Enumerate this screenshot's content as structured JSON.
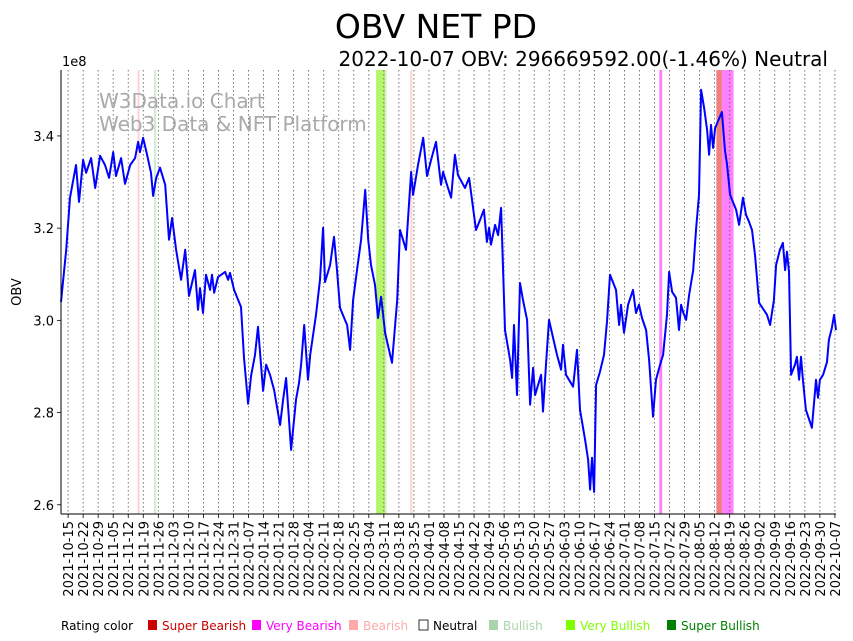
{
  "chart_data": {
    "type": "line",
    "title": "OBV NET PD",
    "subtitle": "2022-10-07 OBV: 296669592.00(-1.46%) Neutral",
    "ylabel": "OBV",
    "y_multiplier_label": "1e8",
    "watermark": [
      "W3Data.io Chart",
      "Web3 Data & NFT Platform"
    ],
    "x_unit": "days since 2021-10-15",
    "xlim": [
      -3.3,
      357.5
    ],
    "ylim": [
      2.58,
      3.543
    ],
    "y_ticks": [
      2.6,
      2.8,
      3.0,
      3.2,
      3.4
    ],
    "y_tick_labels": [
      "2.6",
      "2.8",
      "3.0",
      "3.2",
      "3.4"
    ],
    "grid": "vertical dotted at x ticks",
    "x_tick_labels": [
      "2021-10-15",
      "2021-10-22",
      "2021-10-29",
      "2021-11-05",
      "2021-11-12",
      "2021-11-19",
      "2021-11-26",
      "2021-12-03",
      "2021-12-10",
      "2021-12-17",
      "2021-12-24",
      "2021-12-31",
      "2022-01-07",
      "2022-01-14",
      "2022-01-21",
      "2022-01-28",
      "2022-02-04",
      "2022-02-11",
      "2022-02-18",
      "2022-02-25",
      "2022-03-04",
      "2022-03-11",
      "2022-03-18",
      "2022-03-25",
      "2022-04-01",
      "2022-04-08",
      "2022-04-15",
      "2022-04-22",
      "2022-04-29",
      "2022-05-06",
      "2022-05-13",
      "2022-05-20",
      "2022-05-27",
      "2022-06-03",
      "2022-06-10",
      "2022-06-17",
      "2022-06-24",
      "2022-07-01",
      "2022-07-08",
      "2022-07-15",
      "2022-07-22",
      "2022-07-29",
      "2022-08-05",
      "2022-08-12",
      "2022-08-19",
      "2022-08-26",
      "2022-09-02",
      "2022-09-09",
      "2022-09-16",
      "2022-09-23",
      "2022-09-30",
      "2022-10-07"
    ],
    "series": [
      {
        "name": "OBV",
        "color": "#0000ff",
        "points": [
          [
            -3.3,
            3.04
          ],
          [
            -0.9,
            3.153
          ],
          [
            0.9,
            3.266
          ],
          [
            3.7,
            3.337
          ],
          [
            5.1,
            3.257
          ],
          [
            7.0,
            3.348
          ],
          [
            8.4,
            3.32
          ],
          [
            10.7,
            3.352
          ],
          [
            12.6,
            3.287
          ],
          [
            14.9,
            3.357
          ],
          [
            17.2,
            3.337
          ],
          [
            19.1,
            3.309
          ],
          [
            21.0,
            3.365
          ],
          [
            22.3,
            3.313
          ],
          [
            24.7,
            3.352
          ],
          [
            26.5,
            3.296
          ],
          [
            28.9,
            3.337
          ],
          [
            31.2,
            3.352
          ],
          [
            32.6,
            3.387
          ],
          [
            33.5,
            3.365
          ],
          [
            34.9,
            3.396
          ],
          [
            36.8,
            3.359
          ],
          [
            38.6,
            3.32
          ],
          [
            39.6,
            3.27
          ],
          [
            41.0,
            3.309
          ],
          [
            42.8,
            3.331
          ],
          [
            45.2,
            3.294
          ],
          [
            47.0,
            3.175
          ],
          [
            48.4,
            3.222
          ],
          [
            50.3,
            3.153
          ],
          [
            52.6,
            3.088
          ],
          [
            54.5,
            3.153
          ],
          [
            56.3,
            3.053
          ],
          [
            59.1,
            3.109
          ],
          [
            60.5,
            3.023
          ],
          [
            61.4,
            3.07
          ],
          [
            62.8,
            3.016
          ],
          [
            64.2,
            3.099
          ],
          [
            66.1,
            3.066
          ],
          [
            67.0,
            3.099
          ],
          [
            68.0,
            3.06
          ],
          [
            69.8,
            3.094
          ],
          [
            73.1,
            3.105
          ],
          [
            74.5,
            3.088
          ],
          [
            75.4,
            3.103
          ],
          [
            77.3,
            3.066
          ],
          [
            80.5,
            3.029
          ],
          [
            81.9,
            2.919
          ],
          [
            83.8,
            2.819
          ],
          [
            85.2,
            2.88
          ],
          [
            87.0,
            2.925
          ],
          [
            88.4,
            2.986
          ],
          [
            90.8,
            2.847
          ],
          [
            92.2,
            2.904
          ],
          [
            94.0,
            2.882
          ],
          [
            95.9,
            2.849
          ],
          [
            98.7,
            2.773
          ],
          [
            100.1,
            2.828
          ],
          [
            101.5,
            2.875
          ],
          [
            103.8,
            2.719
          ],
          [
            106.1,
            2.828
          ],
          [
            107.5,
            2.864
          ],
          [
            108.5,
            2.904
          ],
          [
            109.9,
            2.99
          ],
          [
            111.7,
            2.871
          ],
          [
            112.7,
            2.925
          ],
          [
            115.4,
            3.012
          ],
          [
            117.3,
            3.088
          ],
          [
            118.7,
            3.201
          ],
          [
            119.6,
            3.083
          ],
          [
            122.0,
            3.12
          ],
          [
            123.8,
            3.181
          ],
          [
            125.2,
            3.109
          ],
          [
            126.6,
            3.027
          ],
          [
            129.9,
            2.99
          ],
          [
            131.3,
            2.936
          ],
          [
            132.7,
            3.044
          ],
          [
            134.5,
            3.109
          ],
          [
            136.4,
            3.175
          ],
          [
            138.3,
            3.283
          ],
          [
            139.7,
            3.175
          ],
          [
            141.0,
            3.12
          ],
          [
            142.9,
            3.077
          ],
          [
            144.3,
            3.005
          ],
          [
            145.7,
            3.051
          ],
          [
            147.6,
            2.973
          ],
          [
            149.4,
            2.936
          ],
          [
            150.8,
            2.908
          ],
          [
            153.2,
            3.044
          ],
          [
            154.5,
            3.196
          ],
          [
            155.9,
            3.175
          ],
          [
            157.3,
            3.153
          ],
          [
            159.7,
            3.322
          ],
          [
            160.6,
            3.272
          ],
          [
            162.9,
            3.337
          ],
          [
            165.3,
            3.396
          ],
          [
            167.1,
            3.313
          ],
          [
            169.0,
            3.348
          ],
          [
            171.3,
            3.387
          ],
          [
            173.6,
            3.294
          ],
          [
            174.6,
            3.322
          ],
          [
            176.4,
            3.294
          ],
          [
            178.3,
            3.266
          ],
          [
            180.1,
            3.359
          ],
          [
            181.5,
            3.315
          ],
          [
            184.8,
            3.287
          ],
          [
            186.7,
            3.309
          ],
          [
            189.9,
            3.196
          ],
          [
            191.8,
            3.218
          ],
          [
            193.6,
            3.24
          ],
          [
            195.0,
            3.17
          ],
          [
            196.0,
            3.201
          ],
          [
            196.9,
            3.164
          ],
          [
            198.8,
            3.207
          ],
          [
            200.2,
            3.185
          ],
          [
            201.6,
            3.244
          ],
          [
            203.4,
            2.979
          ],
          [
            205.8,
            2.914
          ],
          [
            206.7,
            2.875
          ],
          [
            207.6,
            2.99
          ],
          [
            209.0,
            2.838
          ],
          [
            210.4,
            3.081
          ],
          [
            211.8,
            3.044
          ],
          [
            213.7,
            3.001
          ],
          [
            215.1,
            2.817
          ],
          [
            216.5,
            2.897
          ],
          [
            217.4,
            2.838
          ],
          [
            218.8,
            2.86
          ],
          [
            220.2,
            2.882
          ],
          [
            221.1,
            2.802
          ],
          [
            222.5,
            2.904
          ],
          [
            223.9,
            3.001
          ],
          [
            225.8,
            2.962
          ],
          [
            227.6,
            2.925
          ],
          [
            229.5,
            2.893
          ],
          [
            230.4,
            2.947
          ],
          [
            231.8,
            2.882
          ],
          [
            233.2,
            2.871
          ],
          [
            235.1,
            2.856
          ],
          [
            236.9,
            2.936
          ],
          [
            238.3,
            2.806
          ],
          [
            240.7,
            2.741
          ],
          [
            242.1,
            2.698
          ],
          [
            243.0,
            2.633
          ],
          [
            243.9,
            2.702
          ],
          [
            244.9,
            2.628
          ],
          [
            245.8,
            2.86
          ],
          [
            247.6,
            2.888
          ],
          [
            249.5,
            2.925
          ],
          [
            250.9,
            2.997
          ],
          [
            252.3,
            3.099
          ],
          [
            255.1,
            3.066
          ],
          [
            256.5,
            2.99
          ],
          [
            257.4,
            3.034
          ],
          [
            258.8,
            2.973
          ],
          [
            260.7,
            3.034
          ],
          [
            263.0,
            3.066
          ],
          [
            264.4,
            3.016
          ],
          [
            265.8,
            3.034
          ],
          [
            267.2,
            3.005
          ],
          [
            269.1,
            2.979
          ],
          [
            270.5,
            2.914
          ],
          [
            272.3,
            2.791
          ],
          [
            273.7,
            2.871
          ],
          [
            275.6,
            2.904
          ],
          [
            277.0,
            2.925
          ],
          [
            278.8,
            3.012
          ],
          [
            279.8,
            3.105
          ],
          [
            281.2,
            3.062
          ],
          [
            283.0,
            3.049
          ],
          [
            284.4,
            2.979
          ],
          [
            285.4,
            3.034
          ],
          [
            286.3,
            3.018
          ],
          [
            287.7,
            3.001
          ],
          [
            289.1,
            3.055
          ],
          [
            291.0,
            3.109
          ],
          [
            292.3,
            3.196
          ],
          [
            293.7,
            3.272
          ],
          [
            294.7,
            3.5
          ],
          [
            296.1,
            3.461
          ],
          [
            297.5,
            3.413
          ],
          [
            298.4,
            3.359
          ],
          [
            299.3,
            3.424
          ],
          [
            300.3,
            3.374
          ],
          [
            301.2,
            3.417
          ],
          [
            304.4,
            3.452
          ],
          [
            305.8,
            3.37
          ],
          [
            306.8,
            3.337
          ],
          [
            308.2,
            3.272
          ],
          [
            311.0,
            3.24
          ],
          [
            312.4,
            3.207
          ],
          [
            314.2,
            3.266
          ],
          [
            315.6,
            3.229
          ],
          [
            317.0,
            3.214
          ],
          [
            318.4,
            3.196
          ],
          [
            319.8,
            3.142
          ],
          [
            321.7,
            3.038
          ],
          [
            325.4,
            3.012
          ],
          [
            326.8,
            2.99
          ],
          [
            328.6,
            3.044
          ],
          [
            329.6,
            3.12
          ],
          [
            331.4,
            3.153
          ],
          [
            332.8,
            3.168
          ],
          [
            333.8,
            3.109
          ],
          [
            334.7,
            3.149
          ],
          [
            335.6,
            3.105
          ],
          [
            336.6,
            2.882
          ],
          [
            338.4,
            2.904
          ],
          [
            339.3,
            2.921
          ],
          [
            340.3,
            2.871
          ],
          [
            341.2,
            2.921
          ],
          [
            342.1,
            2.871
          ],
          [
            343.5,
            2.806
          ],
          [
            346.3,
            2.767
          ],
          [
            348.2,
            2.871
          ],
          [
            349.1,
            2.832
          ],
          [
            350.0,
            2.871
          ],
          [
            351.5,
            2.882
          ],
          [
            353.3,
            2.91
          ],
          [
            354.2,
            2.958
          ],
          [
            355.6,
            2.984
          ],
          [
            356.6,
            3.012
          ],
          [
            357.5,
            2.979
          ]
        ]
      }
    ],
    "rating_bands": [
      {
        "rating": "Bearish",
        "from": 32.3,
        "to": 33.3
      },
      {
        "rating": "Bullish",
        "from": 40.0,
        "to": 41.0
      },
      {
        "rating": "Very Bullish",
        "from": 143.4,
        "to": 147.6
      },
      {
        "rating": "Bullish",
        "from": 147.6,
        "to": 148.3
      },
      {
        "rating": "Bearish",
        "from": 159.3,
        "to": 160.3
      },
      {
        "rating": "Very Bearish",
        "from": 275.2,
        "to": 276.6
      },
      {
        "rating": "Super Bearish",
        "from": 301.8,
        "to": 304.4
      },
      {
        "rating": "Very Bearish",
        "from": 304.4,
        "to": 309.8
      }
    ],
    "legend": {
      "title": "Rating color",
      "placement": "bottom",
      "items": [
        {
          "label": "Super Bearish",
          "color": "#cc0000",
          "band": "#f08080"
        },
        {
          "label": "Very Bearish",
          "color": "#ff00ff",
          "band": "#ff80ff"
        },
        {
          "label": "Bearish",
          "color": "#ffaaaa",
          "band": "#ffd5d5"
        },
        {
          "label": "Neutral",
          "color": "#ffffff",
          "band": "#ffffff"
        },
        {
          "label": "Bullish",
          "color": "#aad4aa",
          "band": "#d5ead5"
        },
        {
          "label": "Very Bullish",
          "color": "#80ff00",
          "band": "#b5f56a"
        },
        {
          "label": "Super Bullish",
          "color": "#008000",
          "band": "#80c080"
        }
      ]
    }
  }
}
